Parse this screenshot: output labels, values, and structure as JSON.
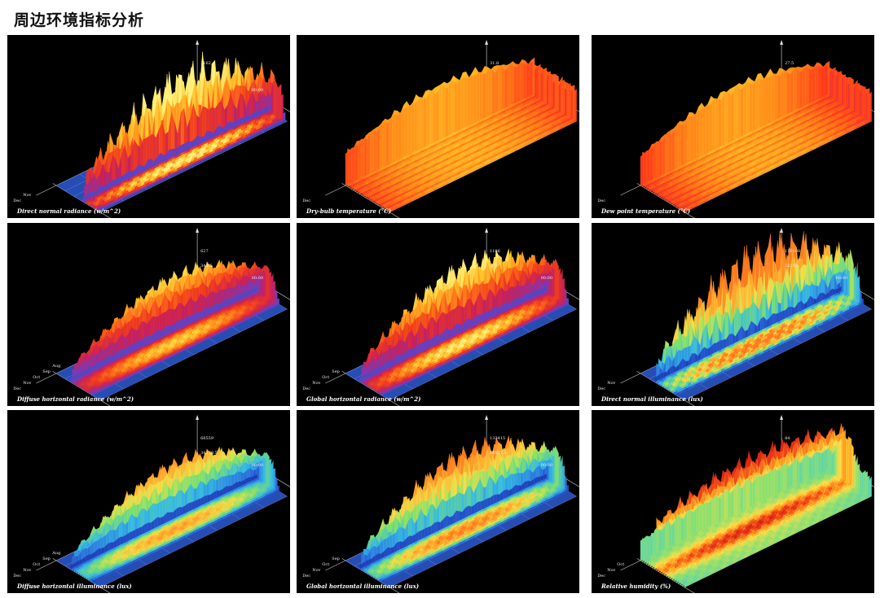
{
  "page": {
    "title": "周边环境指标分析"
  },
  "palettes": {
    "warm": [
      "#3a4fc8",
      "#7a3ab8",
      "#c8205a",
      "#f03a1e",
      "#ff7a1a",
      "#ffc22a",
      "#fff07a"
    ],
    "temp": [
      "#5a2ab0",
      "#c02a6a",
      "#ff3a1a",
      "#ff8a1a",
      "#ffc52a",
      "#fff08a"
    ],
    "cool": [
      "#1a2aa0",
      "#2a60d8",
      "#34b8e8",
      "#7ae070",
      "#f0e04a",
      "#ffb030",
      "#ff7a20"
    ],
    "rh": [
      "#2a60d8",
      "#34c8e8",
      "#8ae070",
      "#ffe04a",
      "#ffa020",
      "#f0401a",
      "#c81a10"
    ]
  },
  "chart_data": [
    {
      "type": "surface",
      "title": "Direct normal radiance (w/m^2)",
      "z_max_label": "1162",
      "z_mid_label": "",
      "month_labels": [
        "Nov",
        "Dec"
      ],
      "x_end_label": "00:00",
      "y_end_label": "00:00",
      "palette": "warm",
      "base": 0.0,
      "amp": 1.0,
      "band": [
        0.58,
        0.98
      ],
      "peak_start": 0.2,
      "peak_end": 1.0,
      "spiky": 0.55,
      "top_x_label": "1162"
    },
    {
      "type": "surface",
      "title": "Dry-bulb temperature (°C)",
      "z_max_label": "31.8",
      "z_mid_label": "",
      "month_labels": [
        "Dec"
      ],
      "x_end_label": "",
      "y_end_label": "00:00",
      "palette": "temp",
      "base": 0.55,
      "amp": 0.55,
      "band": [
        0.0,
        1.0
      ],
      "peak_start": 0.0,
      "peak_end": 1.0,
      "spiky": 0.12
    },
    {
      "type": "surface",
      "title": "Dew point temperature (°C)",
      "z_max_label": "27.5",
      "z_mid_label": "",
      "month_labels": [
        "Dec"
      ],
      "x_end_label": "",
      "y_end_label": "00:00",
      "palette": "temp",
      "base": 0.5,
      "amp": 0.6,
      "band": [
        0.0,
        1.0
      ],
      "peak_start": 0.0,
      "peak_end": 1.0,
      "spiky": 0.12
    },
    {
      "type": "surface",
      "title": "Diffuse horizontal radiance (w/m^2)",
      "z_max_label": "627",
      "z_mid_label": "348.5",
      "month_labels": [
        "Aug",
        "Sep",
        "Oct",
        "Nov",
        "Dec"
      ],
      "x_end_label": "00:00",
      "y_end_label": "00:00",
      "palette": "warm",
      "base": 0.0,
      "amp": 0.85,
      "band": [
        0.3,
        0.85
      ],
      "peak_start": 0.0,
      "peak_end": 1.0,
      "spiky": 0.25
    },
    {
      "type": "surface",
      "title": "Global horizontal radiance (w/m^2)",
      "z_max_label": "1186",
      "z_mid_label": "373",
      "month_labels": [
        "Sep",
        "Oct",
        "Nov",
        "Dec"
      ],
      "x_end_label": "00:00",
      "y_end_label": "00:00",
      "palette": "warm",
      "base": 0.0,
      "amp": 0.95,
      "band": [
        0.3,
        0.85
      ],
      "peak_start": 0.0,
      "peak_end": 1.0,
      "spiky": 0.35
    },
    {
      "type": "surface",
      "title": "Direct normal illuminance (lux)",
      "z_max_label": "110108",
      "z_mid_label": "55154",
      "month_labels": [
        "Nov",
        "Dec"
      ],
      "x_end_label": "00:00",
      "y_end_label": "00:00",
      "palette": "cool",
      "base": 0.0,
      "amp": 1.0,
      "band": [
        0.3,
        0.85
      ],
      "peak_start": 0.0,
      "peak_end": 1.0,
      "spiky": 0.7
    },
    {
      "type": "surface",
      "title": "Diffuse horizontal illuminance (lux)",
      "z_max_label": "68559",
      "z_mid_label": "34279.5",
      "month_labels": [
        "Aug",
        "Sep",
        "Oct",
        "Nov",
        "Dec"
      ],
      "x_end_label": "00:00",
      "y_end_label": "00:00",
      "palette": "cool",
      "base": 0.0,
      "amp": 0.85,
      "band": [
        0.3,
        0.85
      ],
      "peak_start": 0.0,
      "peak_end": 1.0,
      "spiky": 0.25
    },
    {
      "type": "surface",
      "title": "Global horizontal illuminance (lux)",
      "z_max_label": "133415",
      "z_mid_label": "66957.5",
      "month_labels": [
        "Sep",
        "Oct",
        "Nov",
        "Dec"
      ],
      "x_end_label": "00:00",
      "y_end_label": "00:00",
      "palette": "cool",
      "base": 0.0,
      "amp": 0.95,
      "band": [
        0.3,
        0.85
      ],
      "peak_start": 0.0,
      "peak_end": 1.0,
      "spiky": 0.35
    },
    {
      "type": "surface",
      "title": "Relative humidity (%)",
      "z_max_label": "84",
      "z_mid_label": "",
      "month_labels": [
        "Oct",
        "Nov",
        "Dec"
      ],
      "x_end_label": "",
      "y_end_label": "00:00",
      "palette": "rh",
      "base": 0.35,
      "amp": 0.65,
      "band": [
        0.0,
        1.0
      ],
      "peak_start": 0.0,
      "peak_end": 1.0,
      "spiky": 0.3,
      "rh": true
    }
  ]
}
